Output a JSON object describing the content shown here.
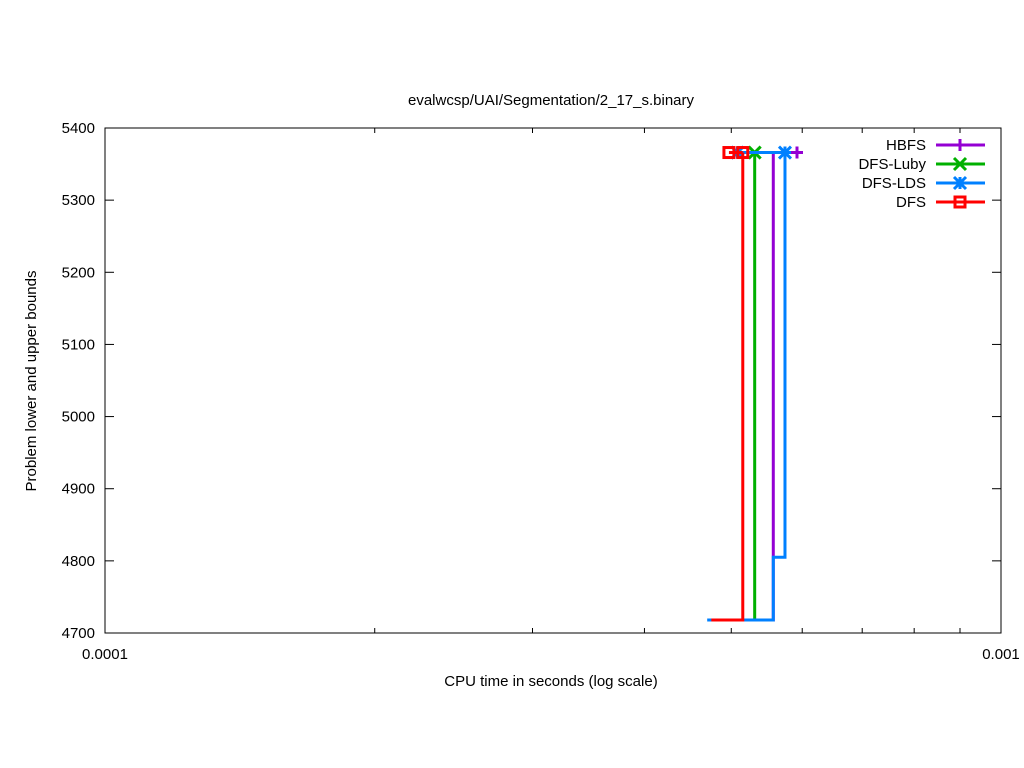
{
  "chart_data": {
    "type": "line",
    "title": "evalwcsp/UAI/Segmentation/2_17_s.binary",
    "xlabel": "CPU time in seconds (log scale)",
    "ylabel": "Problem lower and upper bounds",
    "xscale": "log",
    "xlim": [
      0.0001,
      0.001
    ],
    "ylim": [
      4700,
      5400
    ],
    "xticks": [
      {
        "v": 0.0001,
        "label": "0.0001"
      },
      {
        "v": 0.001,
        "label": "0.001"
      }
    ],
    "yticks": [
      4700,
      4800,
      4900,
      5000,
      5100,
      5200,
      5300,
      5400
    ],
    "grid": false,
    "legend": "top-right",
    "series": [
      {
        "name": "HBFS",
        "color": "#9400d3",
        "marker": "plus",
        "lines": [
          [
            [
              0.000475,
              4718
            ],
            [
              0.000557,
              4718
            ],
            [
              0.000557,
              5366
            ],
            [
              0.000592,
              5366
            ]
          ]
        ],
        "markers": [
          [
            0.000592,
            5366
          ]
        ]
      },
      {
        "name": "DFS-Luby",
        "color": "#00b000",
        "marker": "cross",
        "lines": [
          [
            [
              0.000531,
              4718
            ],
            [
              0.000531,
              5366
            ]
          ]
        ],
        "markers": [
          [
            0.000531,
            5366
          ]
        ]
      },
      {
        "name": "DFS-LDS",
        "color": "#0080ff",
        "marker": "star",
        "lines": [
          [
            [
              0.00047,
              4718
            ],
            [
              0.000557,
              4718
            ],
            [
              0.000557,
              4805
            ],
            [
              0.000574,
              4805
            ],
            [
              0.000574,
              5366
            ]
          ],
          [
            [
              0.000508,
              5366
            ],
            [
              0.000574,
              5366
            ]
          ]
        ],
        "markers": [
          [
            0.000508,
            5366
          ],
          [
            0.000574,
            5366
          ]
        ]
      },
      {
        "name": "DFS",
        "color": "#ff0000",
        "marker": "square",
        "lines": [
          [
            [
              0.000475,
              4718
            ],
            [
              0.000515,
              4718
            ],
            [
              0.000515,
              5366
            ]
          ],
          [
            [
              0.000497,
              5366
            ],
            [
              0.000515,
              5366
            ]
          ]
        ],
        "markers": [
          [
            0.000497,
            5366
          ],
          [
            0.000515,
            5366
          ]
        ]
      }
    ]
  }
}
